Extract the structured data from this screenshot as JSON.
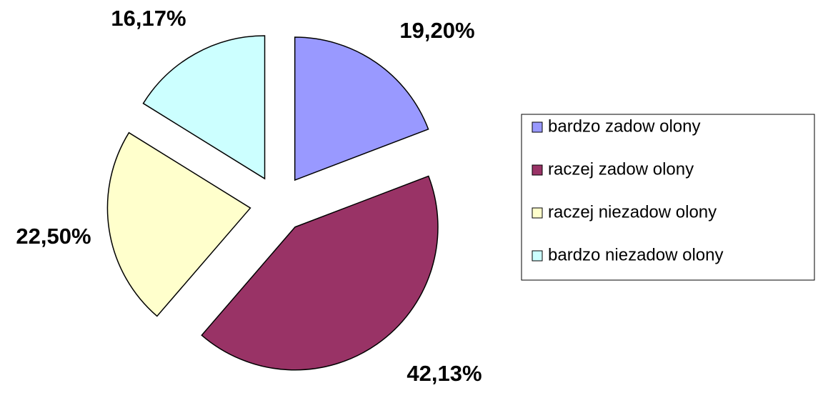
{
  "chart_data": {
    "type": "pie",
    "categories": [
      "bardzo zadow olony",
      "raczej zadow olony",
      "raczej niezadow olony",
      "bardzo niezadow olony"
    ],
    "values": [
      19.2,
      42.13,
      22.5,
      16.17
    ],
    "value_labels": [
      "19,20%",
      "42,13%",
      "22,50%",
      "16,17%"
    ],
    "colors": [
      "#9999ff",
      "#993366",
      "#ffffcc",
      "#ccffff"
    ],
    "legend": "right"
  }
}
